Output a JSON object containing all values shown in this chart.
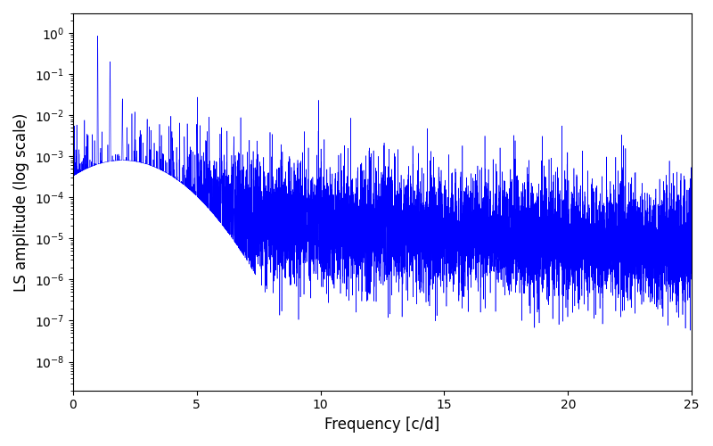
{
  "title": "",
  "xlabel": "Frequency [c/d]",
  "ylabel": "LS amplitude (log scale)",
  "xlim": [
    0,
    25
  ],
  "ylim_low": 2e-09,
  "ylim_high": 3.0,
  "line_color": "#0000ff",
  "line_width": 0.4,
  "freq_max": 25.0,
  "n_points": 10000,
  "seed": 7,
  "bg_color": "#ffffff",
  "fig_width": 8.0,
  "fig_height": 5.0,
  "dpi": 100
}
